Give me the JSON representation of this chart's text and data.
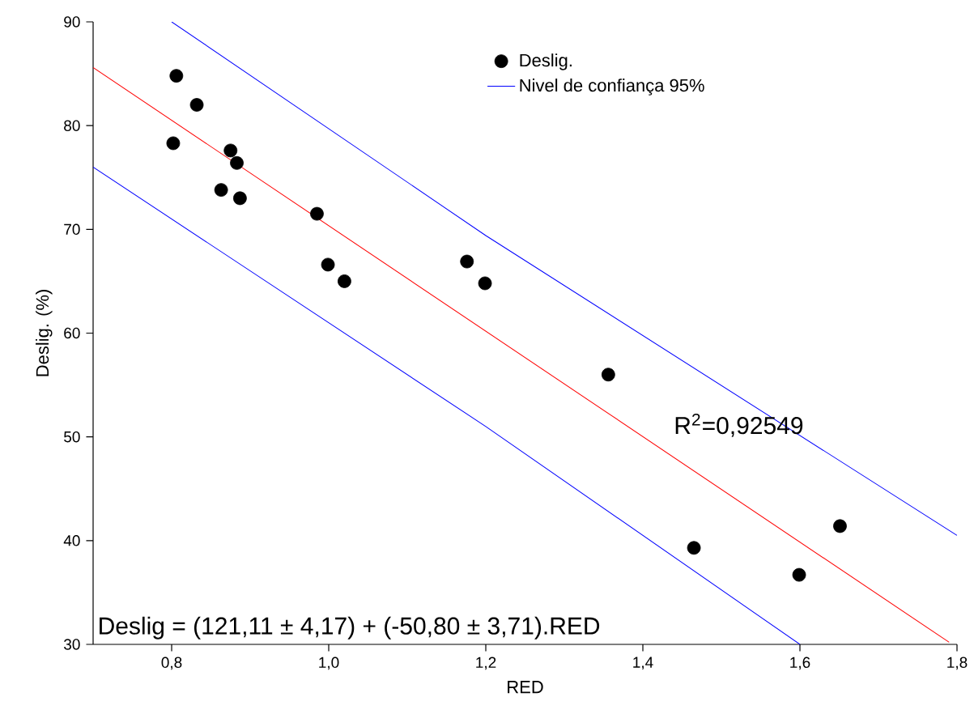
{
  "chart_data": {
    "type": "scatter",
    "xlabel": "RED",
    "ylabel": "Deslig. (%)",
    "xlim": [
      0.7,
      1.8
    ],
    "ylim": [
      30,
      90
    ],
    "xticks": [
      {
        "value": 0.8,
        "label": "0,8"
      },
      {
        "value": 1.0,
        "label": "1,0"
      },
      {
        "value": 1.2,
        "label": "1,2"
      },
      {
        "value": 1.4,
        "label": "1,4"
      },
      {
        "value": 1.6,
        "label": "1,6"
      },
      {
        "value": 1.8,
        "label": "1,8"
      }
    ],
    "yticks": [
      30,
      40,
      50,
      60,
      70,
      80,
      90
    ],
    "grid": false,
    "legend": "top right",
    "annotations": [
      "R$^{2}$=0,92549",
      "Deslig = (121,11 ± 4,17) + (-50,80 ± 3,71).RED"
    ],
    "series": [
      {
        "name": "Deslig.",
        "marker": "circle",
        "color": "#000000",
        "x": [
          0.806,
          0.832,
          0.802,
          0.875,
          0.883,
          0.863,
          0.887,
          0.985,
          0.999,
          1.02,
          1.176,
          1.199,
          1.356,
          1.465,
          1.599,
          1.651
        ],
        "values": [
          84.8,
          82.0,
          78.3,
          77.6,
          76.4,
          73.8,
          73.0,
          71.5,
          66.6,
          65.0,
          66.9,
          64.8,
          56.0,
          39.3,
          36.7,
          41.4
        ]
      },
      {
        "name": "Nivel de confiança 95%",
        "type": "line",
        "marker": "none",
        "color": "#0000ff",
        "x": [
          0.8,
          1.2,
          1.8
        ],
        "values": [
          90,
          69.4,
          40.5
        ]
      },
      {
        "type": "line",
        "marker": "none",
        "color": "#0000ff",
        "x": [
          0.7,
          1.2,
          1.6
        ],
        "values": [
          76,
          51.0,
          30
        ]
      },
      {
        "type": "line",
        "marker": "none",
        "color": "#ff0000",
        "x": [
          0.7,
          1.79
        ],
        "values": [
          85.6,
          30.2
        ]
      }
    ]
  }
}
